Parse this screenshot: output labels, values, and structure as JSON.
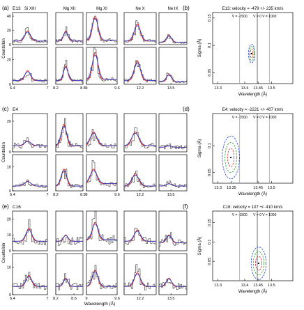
{
  "chart_data": [
    {
      "type": "line",
      "panel_label": "(a)",
      "group_label": "E13",
      "ylabel": "Counts/bin",
      "xlabel": "",
      "column_titles": [
        "Si XIII",
        "Mg XII",
        "Mg XI",
        "Ne X",
        "Ne IX"
      ],
      "y_ticks": [
        [
          "0",
          "20",
          "40"
        ],
        [
          "0",
          "20"
        ]
      ],
      "x_ticks": [
        [
          "6.4",
          "7"
        ],
        [
          "8.2",
          "8.8"
        ],
        [
          "9",
          "9.6"
        ],
        [
          "12.2"
        ],
        [
          "13.5"
        ]
      ],
      "columns": [
        {
          "x": [
            6.4,
            7.0
          ],
          "ylim_top": [
            0,
            45
          ],
          "ylim_bottom": [
            0,
            30
          ],
          "peak_x": 6.66,
          "peak_top": 14,
          "peak_bottom": 8,
          "width": 0.045,
          "bg_top": 5,
          "bg_bottom": 3
        },
        {
          "x": [
            8.2,
            8.8
          ],
          "ylim_top": [
            0,
            45
          ],
          "ylim_bottom": [
            0,
            30
          ],
          "peak_x": 8.42,
          "peak_top": 14,
          "peak_bottom": 12,
          "width": 0.045,
          "bg_top": 5,
          "bg_bottom": 3
        },
        {
          "x": [
            9.0,
            9.6
          ],
          "ylim_top": [
            0,
            45
          ],
          "ylim_bottom": [
            0,
            30
          ],
          "peak_x": 9.17,
          "peak_top": 34,
          "peak_bottom": 22,
          "width": 0.05,
          "bg_top": 6,
          "bg_bottom": 4
        },
        {
          "x": [
            11.8,
            12.6
          ],
          "ylim_top": [
            0,
            45
          ],
          "ylim_bottom": [
            0,
            30
          ],
          "peak_x": 12.13,
          "peak_top": 24,
          "peak_bottom": 16,
          "width": 0.07,
          "bg_top": 5,
          "bg_bottom": 3
        },
        {
          "x": [
            13.2,
            13.9
          ],
          "ylim_top": [
            0,
            45
          ],
          "ylim_bottom": [
            0,
            30
          ],
          "peak_x": 13.45,
          "peak_top": 10,
          "peak_bottom": 6,
          "width": 0.06,
          "bg_top": 3,
          "bg_bottom": 2
        }
      ]
    },
    {
      "type": "line",
      "panel_label": "(c)",
      "group_label": "E4",
      "ylabel": "Counts/bin",
      "xlabel": "",
      "y_ticks": [
        [
          "0",
          "20"
        ],
        [
          "0",
          "10"
        ]
      ],
      "x_ticks": [
        [
          "6.4",
          "7"
        ],
        [
          "8.2",
          "8.8"
        ],
        [
          "9",
          "9.6"
        ],
        [
          "12.2"
        ],
        [
          "13.5"
        ]
      ],
      "columns": [
        {
          "x": [
            6.4,
            7.0
          ],
          "ylim_top": [
            0,
            25
          ],
          "ylim_bottom": [
            0,
            15
          ],
          "peak_x": 6.66,
          "peak_top": 3,
          "peak_bottom": 2,
          "width": 0.05,
          "bg_top": 4,
          "bg_bottom": 2
        },
        {
          "x": [
            8.2,
            8.8
          ],
          "ylim_top": [
            0,
            25
          ],
          "ylim_bottom": [
            0,
            15
          ],
          "peak_x": 8.38,
          "peak_top": 14,
          "peak_bottom": 7,
          "width": 0.055,
          "bg_top": 4,
          "bg_bottom": 2
        },
        {
          "x": [
            9.0,
            9.6
          ],
          "ylim_top": [
            0,
            25
          ],
          "ylim_bottom": [
            0,
            15
          ],
          "peak_x": 9.14,
          "peak_top": 9,
          "peak_bottom": 6,
          "width": 0.06,
          "bg_top": 4,
          "bg_bottom": 3
        },
        {
          "x": [
            11.8,
            12.6
          ],
          "ylim_top": [
            0,
            25
          ],
          "ylim_bottom": [
            0,
            15
          ],
          "peak_x": 12.08,
          "peak_top": 9,
          "peak_bottom": 5,
          "width": 0.08,
          "bg_top": 4,
          "bg_bottom": 2
        },
        {
          "x": [
            13.2,
            13.9
          ],
          "ylim_top": [
            0,
            25
          ],
          "ylim_bottom": [
            0,
            15
          ],
          "peak_x": 13.45,
          "peak_top": 1,
          "peak_bottom": 1,
          "width": 0.06,
          "bg_top": 3,
          "bg_bottom": 2
        }
      ]
    },
    {
      "type": "line",
      "panel_label": "(e)",
      "group_label": "C16",
      "ylabel": "Counts/bin",
      "xlabel": "Wavelength (Å)",
      "y_ticks": [
        [
          "0",
          "10",
          "20"
        ],
        [
          "0",
          "10"
        ]
      ],
      "x_ticks": [
        [
          "6.4",
          "7"
        ],
        [
          "8.2",
          "8.6"
        ],
        [
          "9",
          "9.6"
        ],
        [
          "12.2"
        ],
        [
          "13.5"
        ]
      ],
      "columns": [
        {
          "x": [
            6.4,
            7.0
          ],
          "ylim_top": [
            0,
            25
          ],
          "ylim_bottom": [
            0,
            15
          ],
          "peak_x": 6.68,
          "peak_top": 8,
          "peak_bottom": 4,
          "width": 0.045,
          "bg_top": 6,
          "bg_bottom": 3
        },
        {
          "x": [
            8.2,
            8.8
          ],
          "ylim_top": [
            0,
            25
          ],
          "ylim_bottom": [
            0,
            15
          ],
          "peak_x": 8.42,
          "peak_top": 4,
          "peak_bottom": 3,
          "width": 0.045,
          "bg_top": 6,
          "bg_bottom": 3
        },
        {
          "x": [
            9.0,
            9.6
          ],
          "ylim_top": [
            0,
            25
          ],
          "ylim_bottom": [
            0,
            15
          ],
          "peak_x": 9.17,
          "peak_top": 11,
          "peak_bottom": 6,
          "width": 0.05,
          "bg_top": 7,
          "bg_bottom": 3
        },
        {
          "x": [
            11.8,
            12.6
          ],
          "ylim_top": [
            0,
            25
          ],
          "ylim_bottom": [
            0,
            15
          ],
          "peak_x": 12.13,
          "peak_top": 7,
          "peak_bottom": 5,
          "width": 0.07,
          "bg_top": 6,
          "bg_bottom": 3
        },
        {
          "x": [
            13.2,
            13.9
          ],
          "ylim_top": [
            0,
            25
          ],
          "ylim_bottom": [
            0,
            15
          ],
          "peak_x": 13.45,
          "peak_top": 5,
          "peak_bottom": 3,
          "width": 0.06,
          "bg_top": 5,
          "bg_bottom": 3
        }
      ]
    },
    {
      "type": "contour",
      "panel_label": "(b)",
      "title": "E13: velocity = -479 +/- 235 km/s",
      "xlabel": "Wavelength (Å)",
      "ylabel": "Sigma (Å)",
      "xlim": [
        13.28,
        13.58
      ],
      "ylim": [
        0.03,
        0.16
      ],
      "x_ticks": [
        13.3,
        13.4,
        13.45,
        13.5
      ],
      "x_tick_labels": [
        "13.3",
        "13.4",
        "13.45",
        "13.5"
      ],
      "y_ticks": [
        0.05,
        0.1,
        0.15
      ],
      "y_tick_labels": [
        "0.05",
        "0.1",
        "0.15"
      ],
      "velocity_lines": [
        {
          "label": "V = -1500",
          "x": 13.381
        },
        {
          "label": "V = 0",
          "x": 13.447
        },
        {
          "label": "V = 1000",
          "x": 13.492
        }
      ],
      "best_fit": {
        "x": 13.426,
        "y": 0.085
      },
      "contours": [
        {
          "level": "inner",
          "color": "#d62728",
          "rx": 0.005,
          "ry": 0.008
        },
        {
          "level": "middle",
          "color": "#2ca02c",
          "rx": 0.009,
          "ry": 0.013
        },
        {
          "level": "outer",
          "color": "#1f3fcf",
          "rx": 0.012,
          "ry": 0.017
        }
      ]
    },
    {
      "type": "contour",
      "panel_label": "(d)",
      "title": "E4: velocity = -2221 +/- 407 km/s",
      "xlabel": "Wavelength (Å)",
      "ylabel": "Sigma (Å)",
      "xlim": [
        13.28,
        13.58
      ],
      "ylim": [
        0.03,
        0.16
      ],
      "x_ticks": [
        13.3,
        13.35,
        13.45,
        13.5
      ],
      "x_tick_labels": [
        "13.3",
        "13.35",
        "13.45",
        "13.5"
      ],
      "y_ticks": [
        0.05,
        0.1
      ],
      "y_tick_labels": [
        "0.05",
        "0.1"
      ],
      "velocity_lines": [
        {
          "label": "V = -1500",
          "x": 13.381
        },
        {
          "label": "V = 0",
          "x": 13.447
        },
        {
          "label": "V = 1000",
          "x": 13.492
        }
      ],
      "best_fit": {
        "x": 13.348,
        "y": 0.078
      },
      "contours": [
        {
          "level": "inner",
          "color": "#d62728",
          "rx": 0.012,
          "ry": 0.017
        },
        {
          "level": "middle",
          "color": "#2ca02c",
          "rx": 0.022,
          "ry": 0.028
        },
        {
          "level": "outer",
          "color": "#1f3fcf",
          "rx": 0.032,
          "ry": 0.04
        }
      ]
    },
    {
      "type": "contour",
      "panel_label": "(f)",
      "title": "C16: velocity = 107 +/- 410 km/s",
      "xlabel": "Wavelength (Å)",
      "ylabel": "Sigma (Å)",
      "xlim": [
        13.28,
        13.58
      ],
      "ylim": [
        0.0,
        0.18
      ],
      "x_ticks": [
        13.3,
        13.4,
        13.45,
        13.5
      ],
      "x_tick_labels": [
        "13.3",
        "13.4",
        "13.45",
        "13.5"
      ],
      "y_ticks": [
        0.05,
        0.1,
        0.15
      ],
      "y_tick_labels": [
        "0.05",
        "0.1",
        "0.15"
      ],
      "velocity_lines": [
        {
          "label": "V = -1500",
          "x": 13.381
        },
        {
          "label": "V = 0",
          "x": 13.447
        },
        {
          "label": "V = 1000",
          "x": 13.492
        }
      ],
      "best_fit": {
        "x": 13.452,
        "y": 0.045
      },
      "contours": [
        {
          "level": "inner",
          "color": "#d62728",
          "rx": 0.012,
          "ry": 0.018
        },
        {
          "level": "middle",
          "color": "#2ca02c",
          "rx": 0.02,
          "ry": 0.03
        },
        {
          "level": "outer",
          "color": "#1f3fcf",
          "rx": 0.028,
          "ry": 0.042
        }
      ]
    }
  ]
}
